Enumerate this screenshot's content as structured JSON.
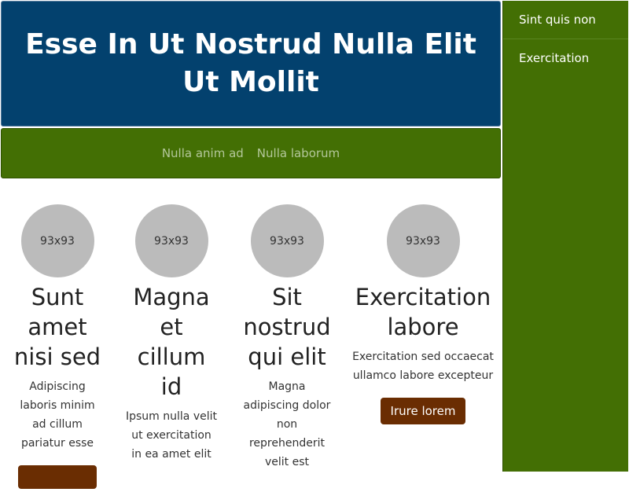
{
  "header": {
    "title": "Esse In Ut Nostrud Nulla Elit Ut Mollit"
  },
  "nav": {
    "links": [
      "Nulla anim ad",
      "Nulla laborum"
    ]
  },
  "sidebar": {
    "items": [
      "Sint quis non",
      "Exercitation"
    ]
  },
  "cards": [
    {
      "image_label": "93x93",
      "title": "Sunt amet nisi sed",
      "text": "Adipiscing laboris minim ad cillum pariatur esse",
      "button": ""
    },
    {
      "image_label": "93x93",
      "title": "Magna et cillum id",
      "text": "Ipsum nulla velit ut exercitation in ea amet elit"
    },
    {
      "image_label": "93x93",
      "title": "Sit nostrud qui elit",
      "text": "Magna adipiscing dolor non reprehenderit velit est"
    },
    {
      "image_label": "93x93",
      "title": "Exercitation labore",
      "text": "Exercitation sed occaecat ullamco labore excepteur",
      "button": "Irure lorem"
    }
  ],
  "colors": {
    "header_bg": "#03416e",
    "nav_bg": "#436f04",
    "sidebar_bg": "#436f04",
    "button_bg": "#6a2d02",
    "avatar_bg": "#bbbbbb"
  }
}
